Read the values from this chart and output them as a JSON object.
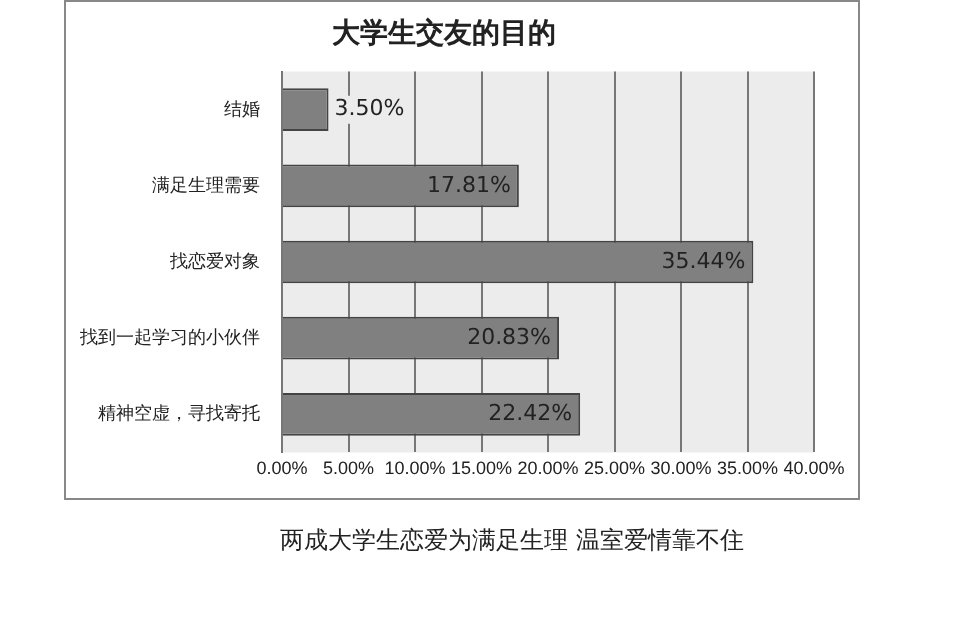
{
  "chart_data": {
    "type": "bar",
    "orientation": "horizontal",
    "title": "大学生交友的目的",
    "categories": [
      "结婚",
      "满足生理需要",
      "找恋爱对象",
      "找到一起学习的小伙伴",
      "精神空虚，寻找寄托"
    ],
    "values": [
      3.5,
      17.81,
      35.44,
      20.83,
      22.42
    ],
    "value_labels": [
      "3.50%",
      "17.81%",
      "35.44%",
      "20.83%",
      "22.42%"
    ],
    "color": "#808080",
    "xlim": [
      0,
      40
    ],
    "xticks": [
      {
        "value": 0,
        "label": "0.00%"
      },
      {
        "value": 5,
        "label": "5.00%"
      },
      {
        "value": 10,
        "label": "10.00%"
      },
      {
        "value": 15,
        "label": "15.00%"
      },
      {
        "value": 20,
        "label": "20.00%"
      },
      {
        "value": 25,
        "label": "25.00%"
      },
      {
        "value": 30,
        "label": "30.00%"
      },
      {
        "value": 35,
        "label": "35.00%"
      },
      {
        "value": 40,
        "label": "40.00%"
      }
    ],
    "grid": "x",
    "legend": false,
    "annotations": [
      "两成大学生恋爱为满足生理 温室爱情靠不住"
    ]
  }
}
